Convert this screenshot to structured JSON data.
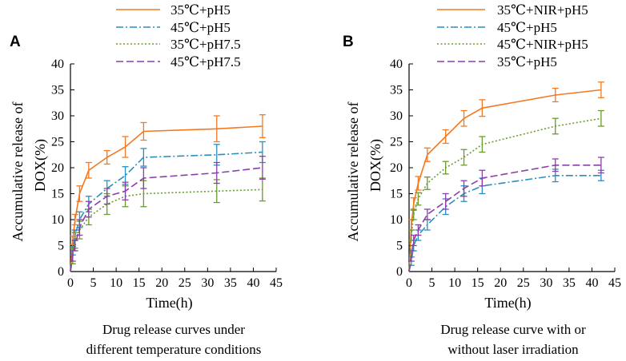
{
  "chart_data": [
    {
      "type": "line",
      "panel_label": "A",
      "title": "",
      "xlabel": "Time(h)",
      "ylabel_lines": [
        "Accumulative release of",
        "DOX(%)"
      ],
      "xlim": [
        0,
        45
      ],
      "ylim": [
        0,
        40
      ],
      "xticks": [
        "0",
        "5",
        "10",
        "15",
        "20",
        "25",
        "30",
        "35",
        "40",
        "45"
      ],
      "yticks": [
        "0",
        "5",
        "10",
        "15",
        "20",
        "25",
        "30",
        "35",
        "40"
      ],
      "x": [
        0,
        0.5,
        1,
        2,
        4,
        8,
        12,
        16,
        32,
        42
      ],
      "legend_position": "top",
      "series": [
        {
          "name": "35℃+pH5",
          "style": "solid",
          "color": "#f47920",
          "values": [
            0,
            6,
            10,
            15,
            19.5,
            22,
            24,
            27,
            27.5,
            28
          ],
          "errors": [
            0,
            0.8,
            1,
            1.5,
            1.5,
            1.3,
            2,
            1.7,
            2.5,
            2.2
          ]
        },
        {
          "name": "45℃+pH5",
          "style": "dashdot",
          "color": "#2a8fbd",
          "values": [
            0,
            4,
            7,
            10,
            13,
            16,
            18.5,
            22,
            22.5,
            23
          ],
          "errors": [
            0,
            0.8,
            1,
            1.5,
            1.5,
            1.5,
            1.7,
            1.7,
            2,
            2
          ]
        },
        {
          "name": "35℃+pH7.5",
          "style": "dotted",
          "color": "#6b9a2d",
          "values": [
            0,
            3,
            6,
            8,
            10.5,
            13,
            14.5,
            15,
            15.5,
            15.8
          ],
          "errors": [
            0,
            1.5,
            1.5,
            1.7,
            1.5,
            2,
            2,
            2.5,
            2.2,
            2.2
          ]
        },
        {
          "name": "45℃+pH7.5",
          "style": "dashed",
          "color": "#8b3fa8",
          "values": [
            0,
            3,
            5,
            8.5,
            12,
            14.5,
            15.5,
            18,
            19,
            20
          ],
          "errors": [
            0,
            1,
            1,
            1.5,
            1.5,
            1.5,
            1.7,
            2,
            2,
            2.2
          ]
        }
      ],
      "caption_lines": [
        "Drug release curves under",
        "different temperature conditions"
      ]
    },
    {
      "type": "line",
      "panel_label": "B",
      "title": "",
      "xlabel": "Time(h)",
      "ylabel_lines": [
        "Accumulative release of",
        "DOX(%)"
      ],
      "xlim": [
        0,
        45
      ],
      "ylim": [
        0,
        40
      ],
      "xticks": [
        "0",
        "5",
        "10",
        "15",
        "20",
        "25",
        "30",
        "35",
        "40",
        "45"
      ],
      "yticks": [
        "0",
        "5",
        "10",
        "15",
        "20",
        "25",
        "30",
        "35",
        "40"
      ],
      "x": [
        0,
        0.5,
        1,
        2,
        4,
        8,
        12,
        16,
        32,
        42
      ],
      "legend_position": "top",
      "series": [
        {
          "name": "35℃+NIR+pH5",
          "style": "solid",
          "color": "#f47920",
          "values": [
            0,
            9,
            13,
            17,
            22.5,
            26,
            29.5,
            31.5,
            34,
            35
          ],
          "errors": [
            0,
            1,
            1.2,
            1.3,
            1.3,
            1.3,
            1.5,
            1.6,
            1.3,
            1.5
          ]
        },
        {
          "name": "45℃+pH5",
          "style": "dashdot",
          "color": "#2a8fbd",
          "values": [
            0,
            2,
            5,
            7,
            9,
            12.5,
            15,
            16.5,
            18.5,
            18.5
          ],
          "errors": [
            0,
            0.8,
            1,
            1,
            1,
            1.5,
            1.5,
            1.5,
            1.2,
            1
          ]
        },
        {
          "name": "45℃+NIR+pH5",
          "style": "dotted",
          "color": "#6b9a2d",
          "values": [
            0,
            7,
            11,
            14,
            17,
            20,
            22,
            24.5,
            28,
            29.5
          ],
          "errors": [
            0,
            1,
            1,
            1.2,
            1.2,
            1.2,
            1.5,
            1.5,
            1.5,
            1.5
          ]
        },
        {
          "name": "35℃+pH5",
          "style": "dashed",
          "color": "#8b3fa8",
          "values": [
            0,
            3,
            6,
            8,
            11,
            13.5,
            16,
            18,
            20.5,
            20.5
          ],
          "errors": [
            0,
            1,
            1,
            1,
            1,
            1.5,
            1.5,
            1.5,
            1.2,
            1.5
          ]
        }
      ],
      "caption_lines": [
        "Drug release curve with or",
        "without laser irradiation"
      ]
    }
  ]
}
